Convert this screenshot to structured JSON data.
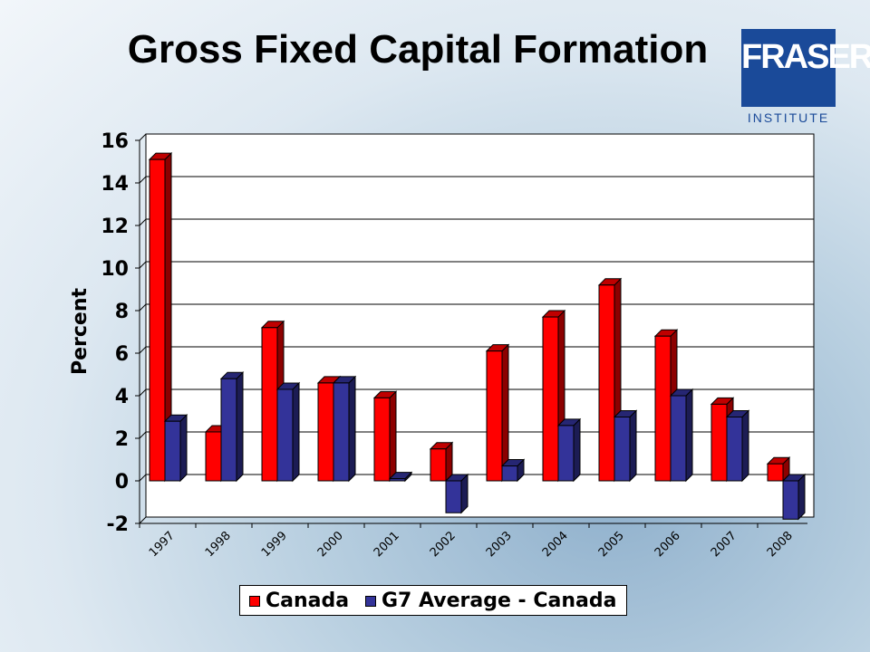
{
  "title": "Gross Fixed Capital Formation",
  "logo": {
    "name": "FRASER",
    "subtitle": "INSTITUTE"
  },
  "chart_data": {
    "type": "bar",
    "title": "Gross Fixed Capital Formation",
    "xlabel": "",
    "ylabel": "Percent",
    "ylim": [
      -2,
      16
    ],
    "yticks": [
      -2,
      0,
      2,
      4,
      6,
      8,
      10,
      12,
      14,
      16
    ],
    "grid": true,
    "legend_position": "bottom",
    "categories": [
      "1997",
      "1998",
      "1999",
      "2000",
      "2001",
      "2002",
      "2003",
      "2004",
      "2005",
      "2006",
      "2007",
      "2008"
    ],
    "series": [
      {
        "name": "Canada",
        "color": "#ff0000",
        "values": [
          15.1,
          2.3,
          7.2,
          4.6,
          3.9,
          1.5,
          6.1,
          7.7,
          9.2,
          6.8,
          3.6,
          0.8
        ]
      },
      {
        "name": "G7 Average - Canada",
        "color": "#333399",
        "values": [
          2.8,
          4.8,
          4.3,
          4.6,
          0.1,
          -1.5,
          0.7,
          2.6,
          3.0,
          4.0,
          3.0,
          -1.8
        ]
      }
    ]
  }
}
